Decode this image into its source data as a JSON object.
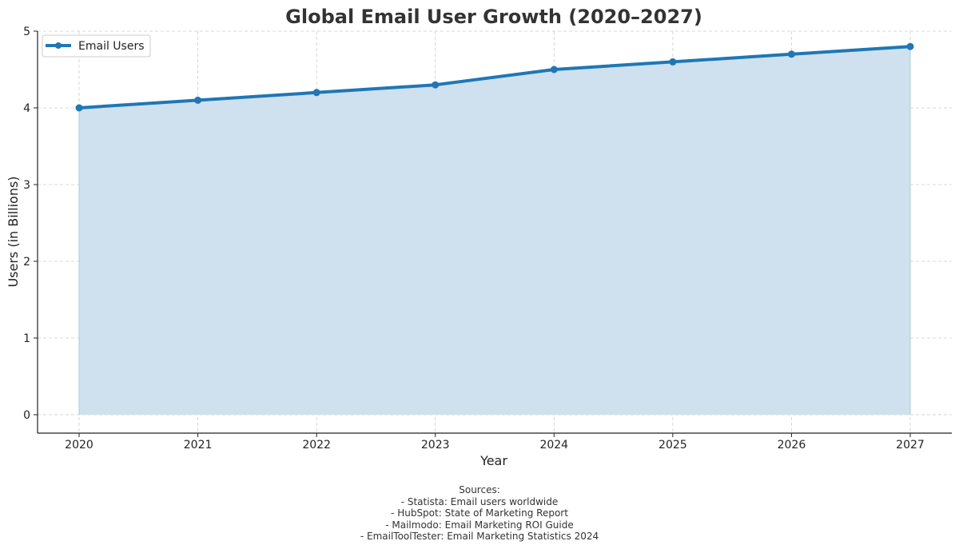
{
  "chart_data": {
    "type": "area",
    "title": "Global Email User Growth (2020–2027)",
    "xlabel": "Year",
    "ylabel": "Users (in Billions)",
    "x": [
      2020,
      2021,
      2022,
      2023,
      2024,
      2025,
      2026,
      2027
    ],
    "x_tick_labels": [
      "2020",
      "2021",
      "2022",
      "2023",
      "2024",
      "2025",
      "2026",
      "2027"
    ],
    "y_ticks": [
      0,
      1,
      2,
      3,
      4,
      5
    ],
    "ylim": [
      -0.24,
      5.0
    ],
    "xlim": [
      2019.65,
      2027.35
    ],
    "grid": true,
    "legend_position": "top-left",
    "series": [
      {
        "name": "Email Users",
        "values": [
          4.0,
          4.1,
          4.2,
          4.3,
          4.5,
          4.6,
          4.7,
          4.8
        ],
        "line_color": "#1f77b4",
        "fill_color": "#cfe1ee"
      }
    ]
  },
  "sources": {
    "heading": "Sources:",
    "items": [
      "- Statista: Email users worldwide",
      "- HubSpot: State of Marketing Report",
      "- Mailmodo: Email Marketing ROI Guide",
      "- EmailToolTester: Email Marketing Statistics 2024"
    ]
  }
}
